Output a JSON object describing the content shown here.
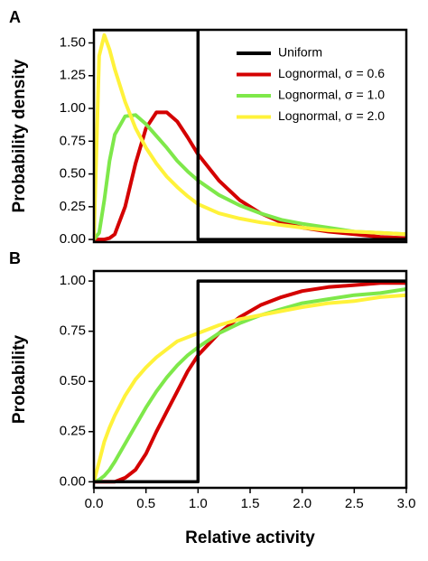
{
  "chart_data": [
    {
      "type": "line",
      "panel_label": "A",
      "ylabel": "Probability density",
      "legend": "top-right",
      "xlim": [
        0,
        3
      ],
      "ylim": [
        -0.02,
        1.6
      ],
      "yticks": [
        {
          "value": 0,
          "label": "0.00"
        },
        {
          "value": 0.25,
          "label": "0.25"
        },
        {
          "value": 0.5,
          "label": "0.50"
        },
        {
          "value": 0.75,
          "label": "0.75"
        },
        {
          "value": 1,
          "label": "1.00"
        },
        {
          "value": 1.25,
          "label": "1.25"
        },
        {
          "value": 1.5,
          "label": "1.50"
        }
      ],
      "x": [
        0,
        0.05,
        0.1,
        0.15,
        0.2,
        0.3,
        0.4,
        0.5,
        0.6,
        0.7,
        0.8,
        0.9,
        1.0,
        1.2,
        1.4,
        1.6,
        1.8,
        2.0,
        2.25,
        2.5,
        2.75,
        3.0
      ],
      "series": [
        {
          "name": "Uniform",
          "color": "#000000",
          "x": [
            0,
            1,
            1,
            3
          ],
          "values": [
            1.6,
            1.6,
            0,
            0
          ]
        },
        {
          "name": "Lognormal, σ = 0.6",
          "color": "#d40000",
          "values": [
            0,
            0,
            0,
            0.01,
            0.04,
            0.25,
            0.58,
            0.85,
            0.97,
            0.97,
            0.9,
            0.78,
            0.65,
            0.45,
            0.3,
            0.2,
            0.13,
            0.09,
            0.06,
            0.04,
            0.02,
            0.01
          ]
        },
        {
          "name": "Lognormal, σ = 1.0",
          "color": "#7ee84a",
          "values": [
            0,
            0.05,
            0.3,
            0.6,
            0.8,
            0.94,
            0.95,
            0.88,
            0.79,
            0.7,
            0.6,
            0.52,
            0.45,
            0.34,
            0.26,
            0.2,
            0.15,
            0.12,
            0.09,
            0.06,
            0.05,
            0.04
          ]
        },
        {
          "name": "Lognormal, σ = 2.0",
          "color": "#fff23a",
          "values": [
            0,
            1.4,
            1.56,
            1.45,
            1.3,
            1.05,
            0.85,
            0.7,
            0.58,
            0.48,
            0.4,
            0.33,
            0.27,
            0.2,
            0.16,
            0.13,
            0.11,
            0.09,
            0.07,
            0.06,
            0.05,
            0.04
          ]
        }
      ]
    },
    {
      "type": "line",
      "panel_label": "B",
      "ylabel": "Probability",
      "xlabel": "Relative activity",
      "xlim": [
        0,
        3
      ],
      "ylim": [
        -0.03,
        1.05
      ],
      "xticks": [
        {
          "value": 0,
          "label": "0.0"
        },
        {
          "value": 0.5,
          "label": "0.5"
        },
        {
          "value": 1,
          "label": "1.0"
        },
        {
          "value": 1.5,
          "label": "1.5"
        },
        {
          "value": 2,
          "label": "2.0"
        },
        {
          "value": 2.5,
          "label": "2.5"
        },
        {
          "value": 3,
          "label": "3.0"
        }
      ],
      "yticks": [
        {
          "value": 0,
          "label": "0.00"
        },
        {
          "value": 0.25,
          "label": "0.25"
        },
        {
          "value": 0.5,
          "label": "0.50"
        },
        {
          "value": 0.75,
          "label": "0.75"
        },
        {
          "value": 1,
          "label": "1.00"
        }
      ],
      "x": [
        0,
        0.05,
        0.1,
        0.15,
        0.2,
        0.3,
        0.4,
        0.5,
        0.6,
        0.7,
        0.8,
        0.9,
        1.0,
        1.2,
        1.4,
        1.6,
        1.8,
        2.0,
        2.25,
        2.5,
        2.75,
        3.0
      ],
      "series": [
        {
          "color": "#000000",
          "x": [
            0,
            1,
            1,
            3
          ],
          "values": [
            0,
            0,
            1,
            1
          ]
        },
        {
          "color": "#d40000",
          "values": [
            0,
            0,
            0,
            0,
            0,
            0.02,
            0.06,
            0.14,
            0.25,
            0.35,
            0.45,
            0.55,
            0.63,
            0.74,
            0.82,
            0.88,
            0.92,
            0.95,
            0.97,
            0.98,
            0.99,
            0.99
          ]
        },
        {
          "color": "#7ee84a",
          "values": [
            0,
            0.01,
            0.03,
            0.06,
            0.1,
            0.19,
            0.28,
            0.37,
            0.45,
            0.52,
            0.58,
            0.63,
            0.67,
            0.74,
            0.79,
            0.83,
            0.86,
            0.89,
            0.91,
            0.93,
            0.94,
            0.96
          ]
        },
        {
          "color": "#fff23a",
          "values": [
            0,
            0.1,
            0.2,
            0.27,
            0.33,
            0.43,
            0.51,
            0.57,
            0.62,
            0.66,
            0.7,
            0.72,
            0.74,
            0.78,
            0.81,
            0.83,
            0.85,
            0.87,
            0.89,
            0.9,
            0.92,
            0.93
          ]
        }
      ]
    }
  ]
}
